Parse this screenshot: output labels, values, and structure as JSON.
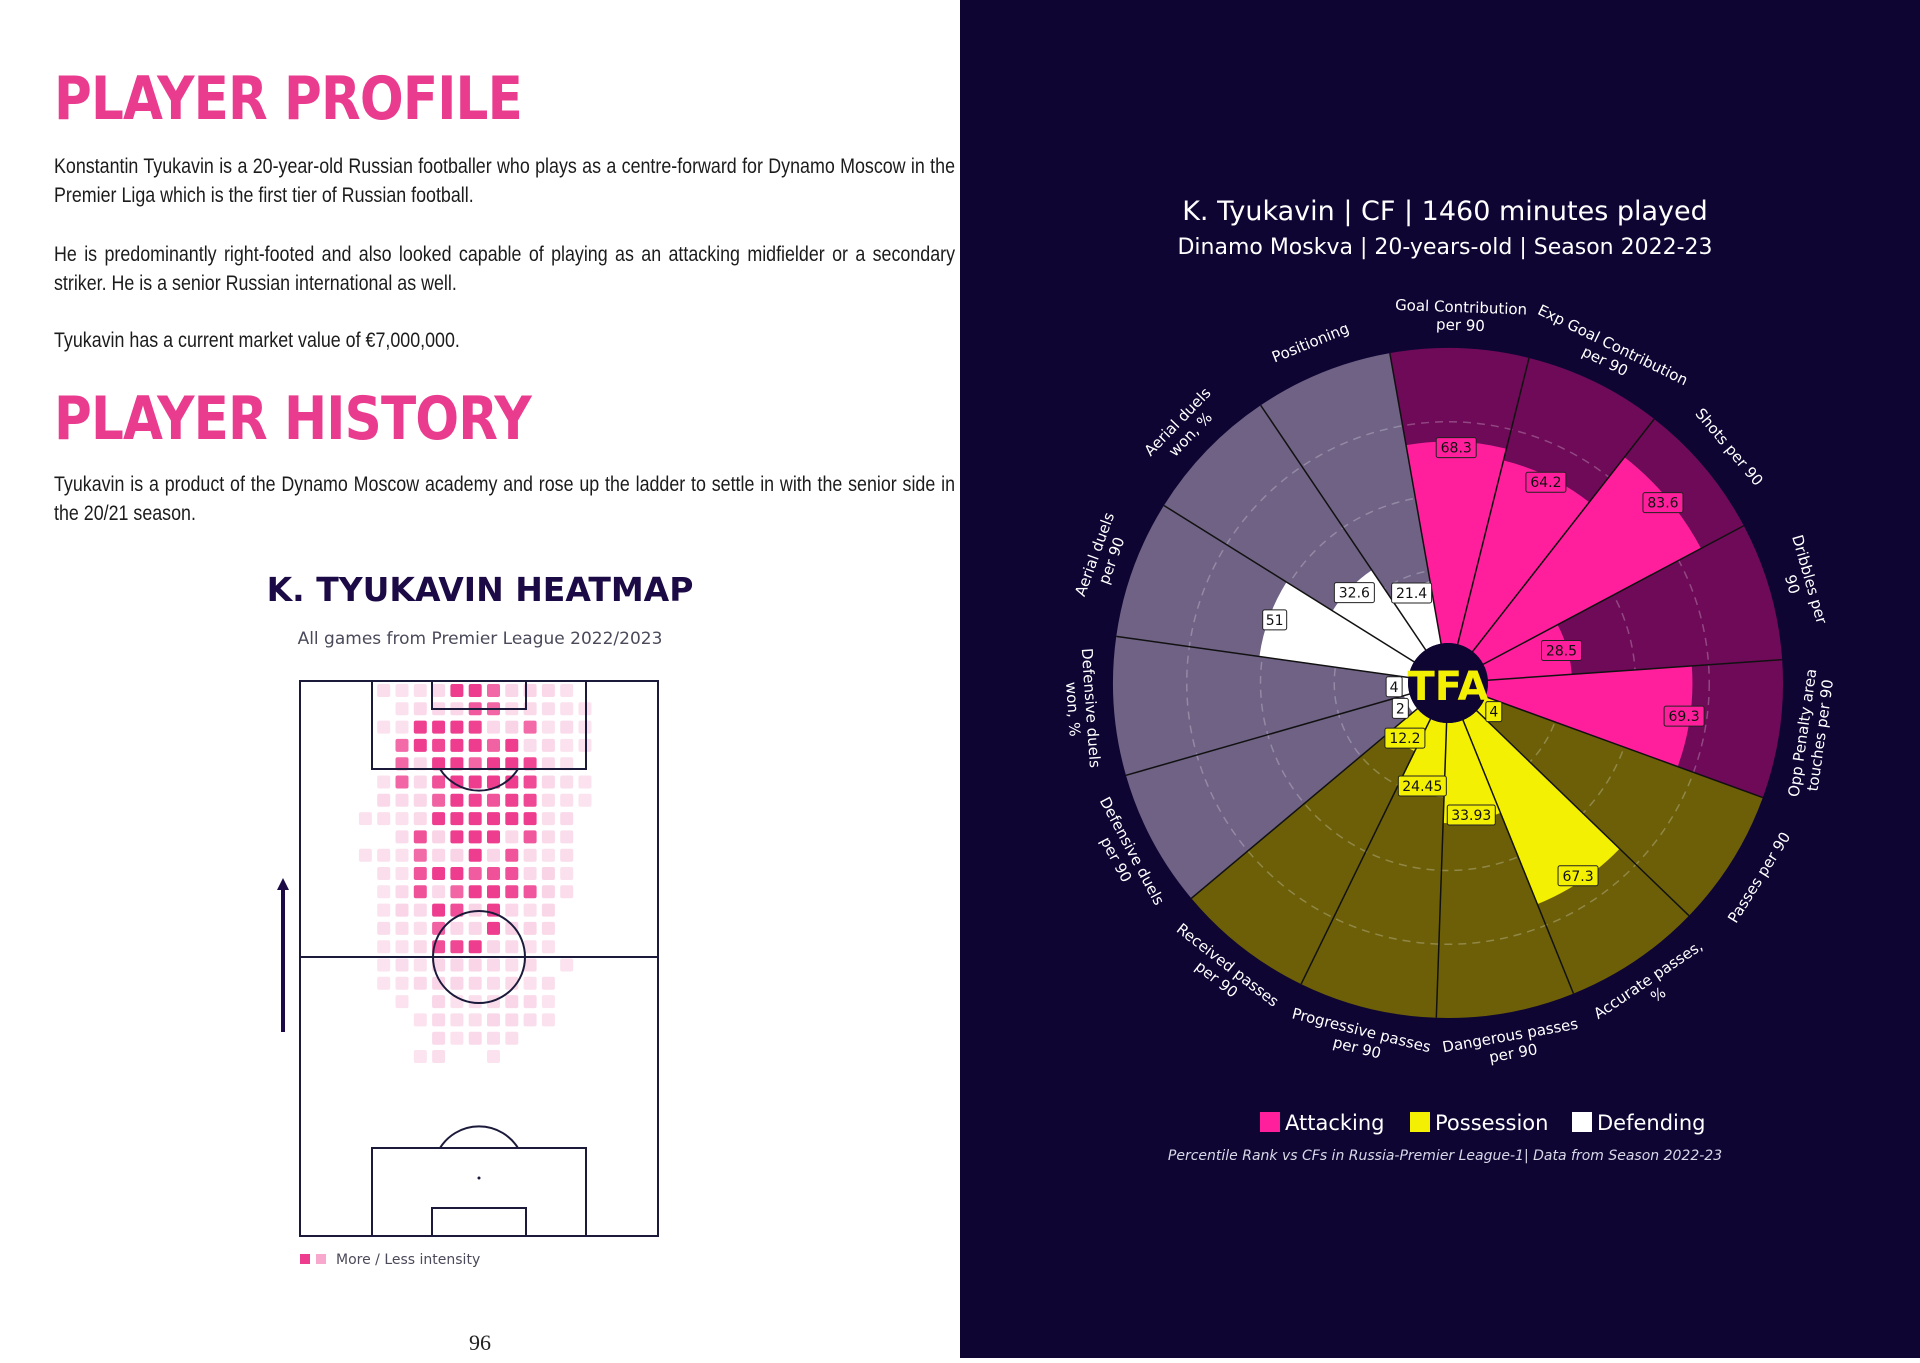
{
  "profile": {
    "heading": "PLAYER PROFILE",
    "paragraphs": [
      "Konstantin Tyukavin is a 20-year-old Russian footballer who plays as a centre-forward for Dynamo Moscow in the Premier Liga which is the first tier of Russian football.",
      "He is predominantly right-footed and also looked capable of playing as an attacking midfielder or a secondary striker. He is a senior Russian international as well.",
      "Tyukavin has a current market value of €7,000,000."
    ]
  },
  "history": {
    "heading": "PLAYER HISTORY",
    "paragraph": "Tyukavin is a product of the Dynamo Moscow academy and rose  up the ladder to settle in with the senior side in the 20/21 season."
  },
  "heatmap": {
    "title": "K. TYUKAVIN HEATMAP",
    "subtitle": "All games from Premier League 2022/2023",
    "legend": "More / Less intensity",
    "colors": {
      "high": "#ee3d8e",
      "low": "#f7c5de"
    }
  },
  "page_number": "96",
  "chart_data": {
    "type": "radar-pizza",
    "title": "K. Tyukavin | CF | 1460 minutes played",
    "subtitle": "Dinamo Moskva | 20-years-old | Season 2022-23",
    "center_logo": "TFA",
    "footnote": "Percentile Rank vs CFs in Russia-Premier League-1| Data from Season 2022-23",
    "legend": [
      {
        "label": "Attacking",
        "color": "#ff1f9c"
      },
      {
        "label": "Possession",
        "color": "#f4f004"
      },
      {
        "label": "Defending",
        "color": "#ffffff"
      }
    ],
    "series": [
      {
        "label": "Goal Contribution per 90",
        "value": 68.3,
        "category": "Attacking"
      },
      {
        "label": "Exp Goal Contribution per 90",
        "value": 64.2,
        "category": "Attacking"
      },
      {
        "label": "Shots per 90",
        "value": 83.6,
        "category": "Attacking"
      },
      {
        "label": "Dribbles per 90",
        "value": 28.5,
        "category": "Attacking"
      },
      {
        "label": "Opp Penalty area touches per 90",
        "value": 69.3,
        "category": "Attacking"
      },
      {
        "label": "Passes per 90",
        "value": 4.0,
        "category": "Possession"
      },
      {
        "label": "Accurate passes, %",
        "value": 67.3,
        "category": "Possession"
      },
      {
        "label": "Dangerous passes per 90",
        "value": 33.93,
        "category": "Possession"
      },
      {
        "label": "Progressive passes per 90",
        "value": 24.45,
        "category": "Possession"
      },
      {
        "label": "Received passes per 90",
        "value": 12.2,
        "category": "Possession"
      },
      {
        "label": "Defensive duels per 90",
        "value": 2.0,
        "category": "Defending"
      },
      {
        "label": "Defensive duels won, %",
        "value": 4.0,
        "category": "Defending"
      },
      {
        "label": "Aerial duels per 90",
        "value": 51.0,
        "category": "Defending"
      },
      {
        "label": "Aerial duels won, %",
        "value": 32.6,
        "category": "Defending"
      },
      {
        "label": "Positioning",
        "value": 21.4,
        "category": "Defending"
      }
    ]
  }
}
